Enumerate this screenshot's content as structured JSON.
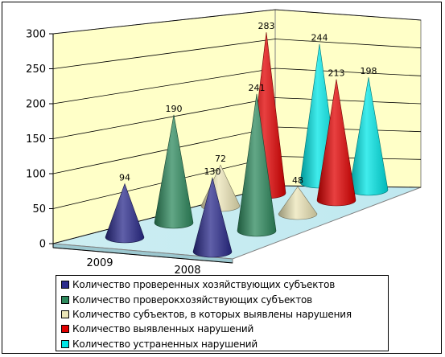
{
  "chart_data": {
    "type": "bar",
    "shape": "3d-cone",
    "categories": [
      "2009",
      "2008"
    ],
    "ylim": [
      0,
      300
    ],
    "y_ticks": [
      "0",
      "50",
      "100",
      "150",
      "200",
      "250",
      "300"
    ],
    "grid": true,
    "legend_position": "bottom",
    "series": [
      {
        "name": "Количество проверенных хозяйствующих субъектов",
        "color": "#2b2b8c",
        "values": [
          94,
          130
        ]
      },
      {
        "name": "Количество проверокхозяйствующих субъектов",
        "color": "#2e8a5e",
        "values": [
          190,
          241
        ]
      },
      {
        "name": "Количество субъектов, в которых выявлены нарушения",
        "color": "#ece6b8",
        "values": [
          72,
          48
        ]
      },
      {
        "name": "Количество выявленных нарушений",
        "color": "#e00000",
        "values": [
          283,
          213
        ]
      },
      {
        "name": "Количество устраненных нарушений",
        "color": "#00e6e6",
        "values": [
          244,
          198
        ]
      }
    ]
  }
}
